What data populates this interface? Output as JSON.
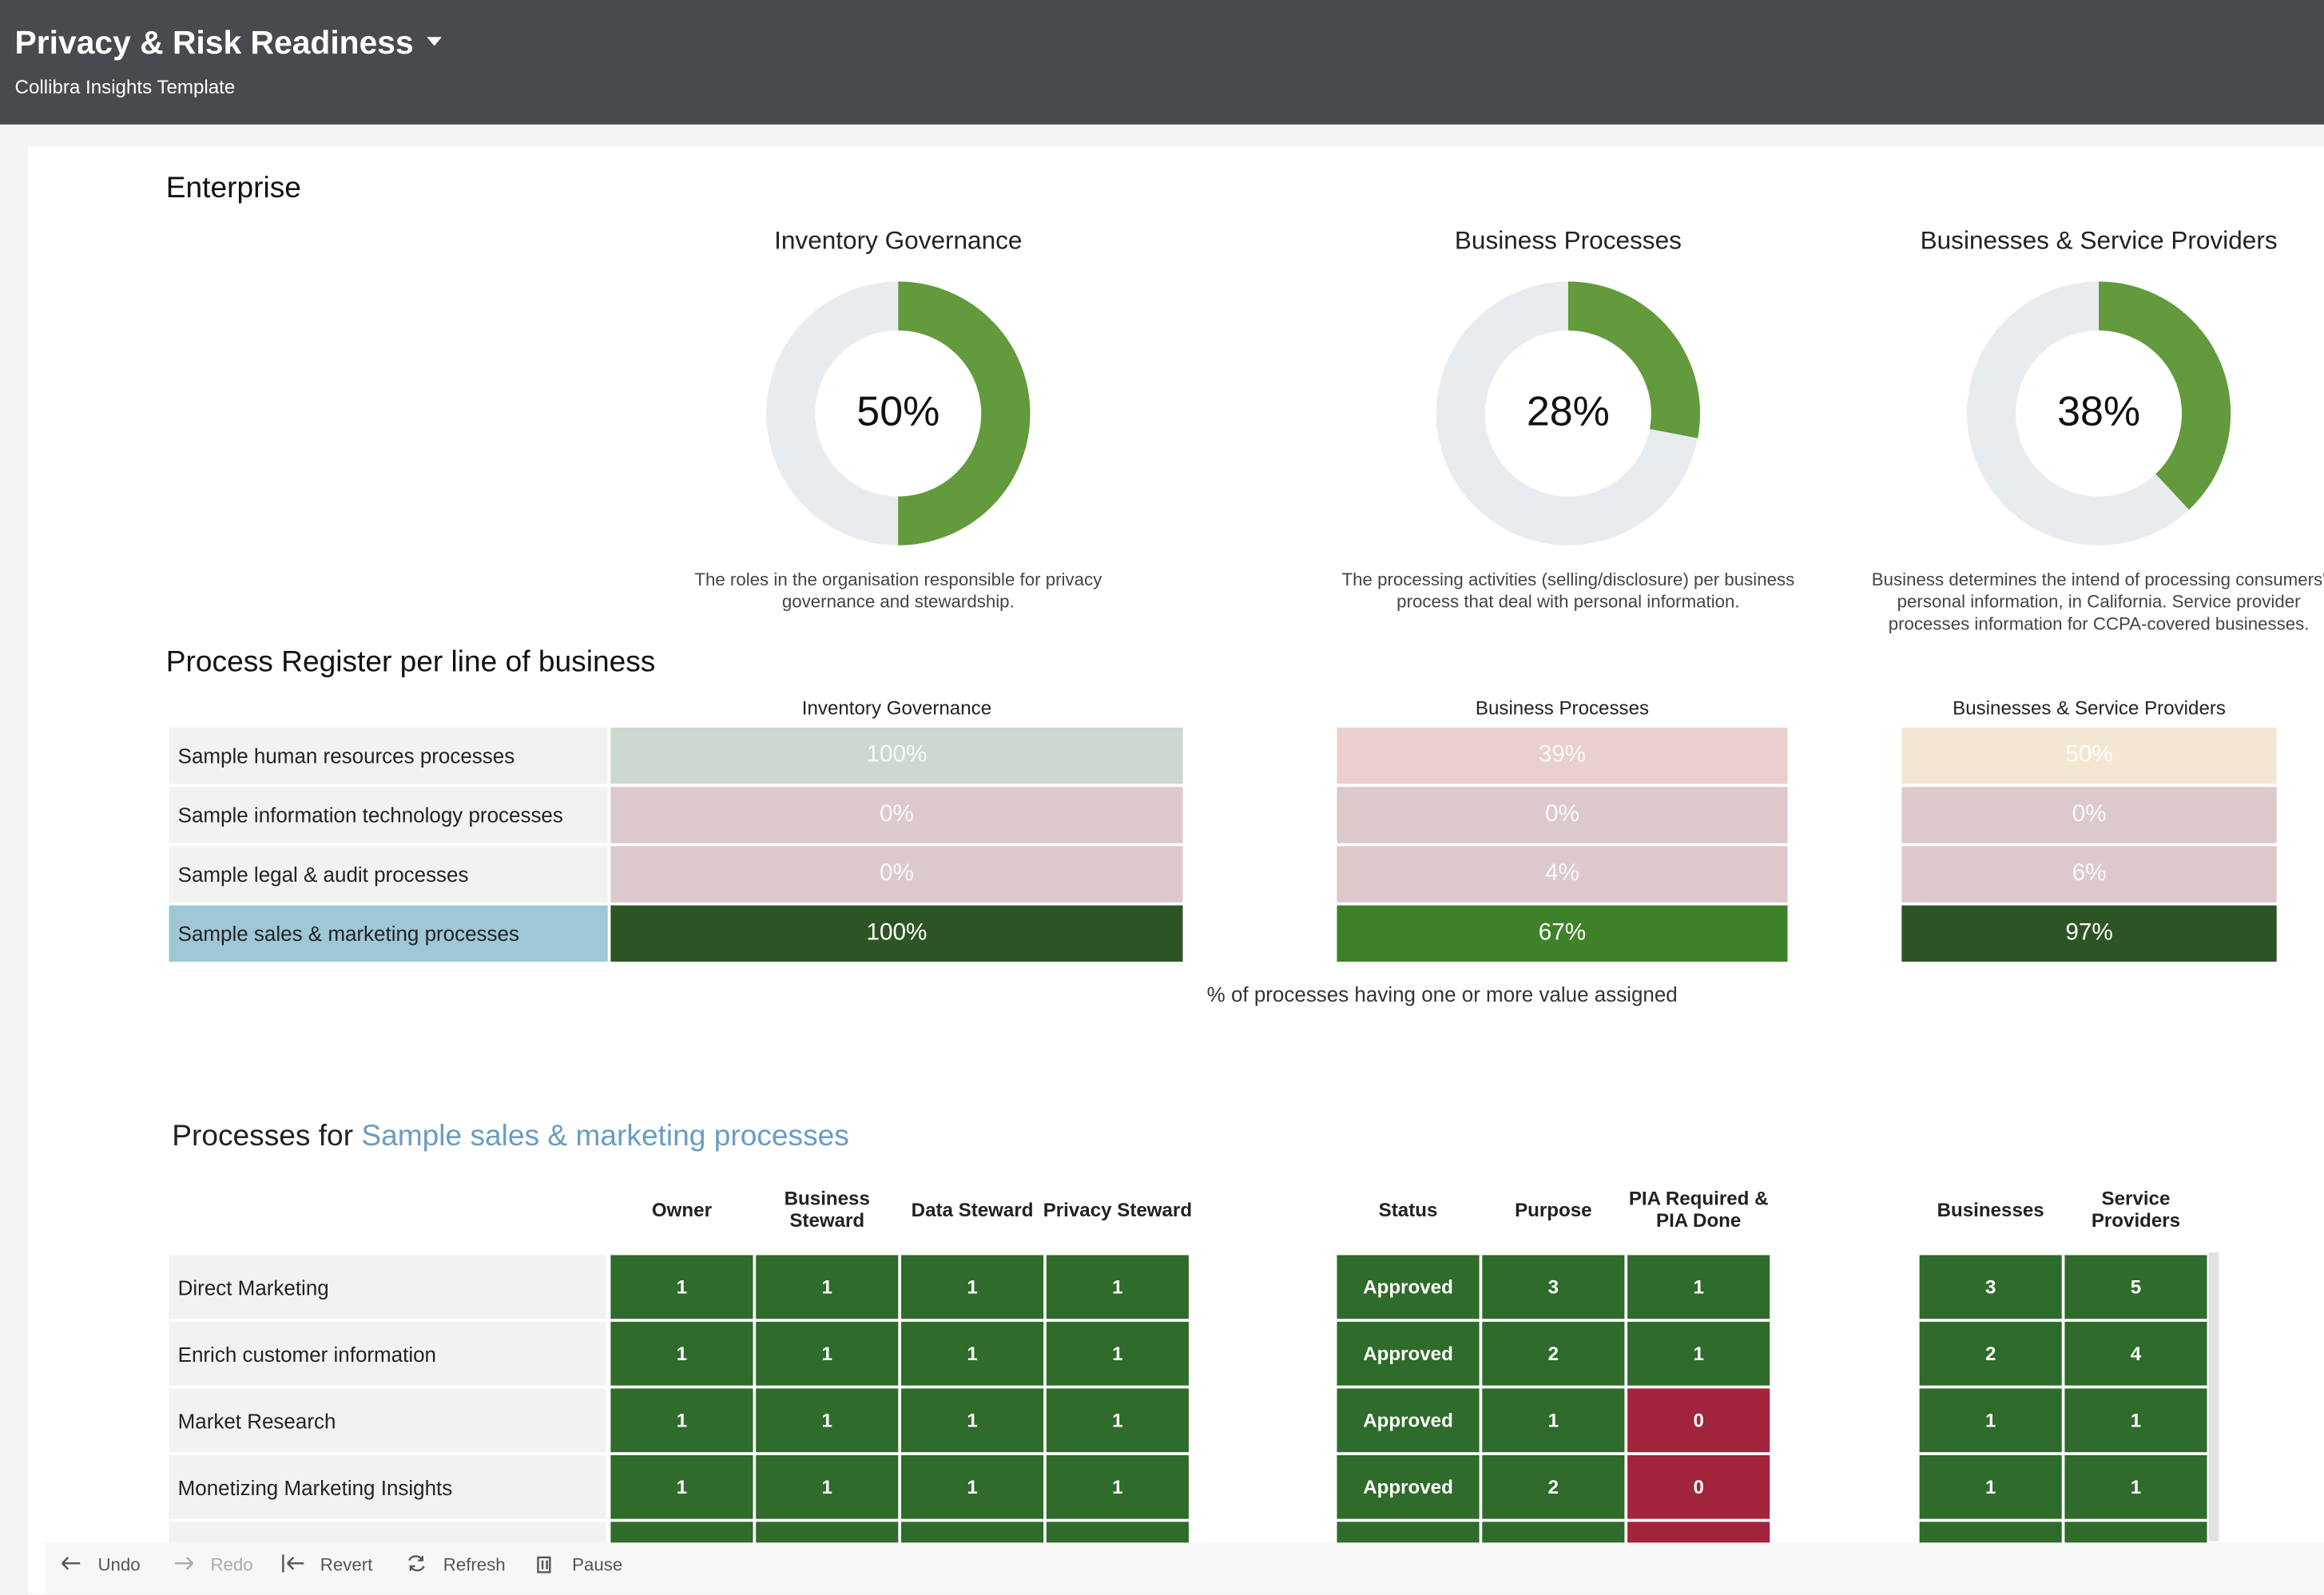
{
  "header": {
    "title": "Privacy & Risk Readiness",
    "subtitle": "Collibra Insights Template"
  },
  "enterprise": {
    "heading": "Enterprise",
    "donuts": [
      {
        "title": "Inventory Governance",
        "value": 50,
        "label": "50%",
        "description": "The roles in the organisation responsible for privacy governance and stewardship."
      },
      {
        "title": "Business Processes",
        "value": 28,
        "label": "28%",
        "description": "The processing activities (selling/disclosure) per business process that deal with personal information."
      },
      {
        "title": "Businesses & Service Providers",
        "value": 38,
        "label": "38%",
        "description": "Business determines the intend of processing consumers' personal information, in California. Service provider processes information for CCPA-covered businesses."
      }
    ]
  },
  "register": {
    "heading": "Process Register per line of business",
    "columns": [
      "Inventory Governance",
      "Business Processes",
      "Businesses & Service Providers"
    ],
    "rows": [
      {
        "name": "Sample human resources processes",
        "cells": [
          "100%",
          "39%",
          "50%"
        ]
      },
      {
        "name": "Sample information technology processes",
        "cells": [
          "0%",
          "0%",
          "0%"
        ]
      },
      {
        "name": "Sample legal & audit processes",
        "cells": [
          "0%",
          "4%",
          "6%"
        ]
      },
      {
        "name": "Sample sales & marketing processes",
        "cells": [
          "100%",
          "67%",
          "97%"
        ]
      }
    ],
    "footnote": "% of processes having one or more value assigned"
  },
  "processes": {
    "heading": "Processes for",
    "selected": "Sample sales & marketing processes",
    "columns": [
      "Owner",
      "Business Steward",
      "Data Steward",
      "Privacy Steward",
      "Status",
      "Purpose",
      "PIA Required & PIA Done",
      "Businesses",
      "Service Providers"
    ],
    "rows": [
      {
        "name": "Direct Marketing",
        "cells": [
          1,
          1,
          1,
          1,
          "Approved",
          3,
          1,
          3,
          5
        ]
      },
      {
        "name": "Enrich customer information",
        "cells": [
          1,
          1,
          1,
          1,
          "Approved",
          2,
          1,
          2,
          4
        ]
      },
      {
        "name": "Market Research",
        "cells": [
          1,
          1,
          1,
          1,
          "Approved",
          1,
          0,
          1,
          1
        ]
      },
      {
        "name": "Monetizing Marketing Insights",
        "cells": [
          1,
          1,
          1,
          1,
          "Approved",
          2,
          0,
          1,
          1
        ]
      }
    ]
  },
  "toolbar": [
    "Undo",
    "Redo",
    "Revert",
    "Refresh",
    "Pause"
  ]
}
